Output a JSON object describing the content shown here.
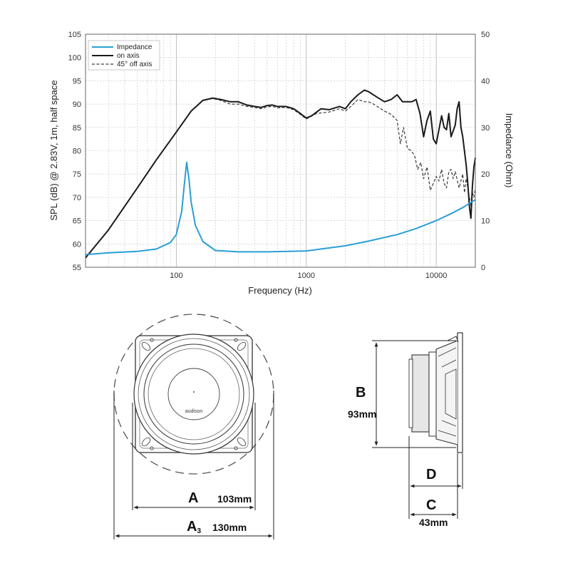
{
  "chart_data": {
    "type": "line",
    "xlabel": "Frequency (Hz)",
    "ylabel": "SPL (dB) @ 2.83V, 1m, half space",
    "y2label": "Impedance (Ohm)",
    "x_scale": "log",
    "xlim": [
      20,
      20000
    ],
    "ylim": [
      55,
      105
    ],
    "y2lim": [
      0,
      50
    ],
    "xticks": [
      {
        "v": 100,
        "label": "100"
      },
      {
        "v": 1000,
        "label": "1000"
      },
      {
        "v": 10000,
        "label": "10000"
      }
    ],
    "yticks": [
      55,
      60,
      65,
      70,
      75,
      80,
      85,
      90,
      95,
      100,
      105
    ],
    "y2ticks": [
      0,
      10,
      20,
      30,
      40,
      50
    ],
    "grid": true,
    "legend_position": "top-left",
    "series": [
      {
        "name": "Impedance",
        "axis": "right",
        "color": "#2a9fd6",
        "style": "solid",
        "x": [
          20,
          30,
          50,
          70,
          90,
          100,
          110,
          115,
          120,
          125,
          130,
          140,
          160,
          200,
          300,
          500,
          1000,
          2000,
          3000,
          5000,
          7000,
          10000,
          13000,
          16000,
          20000
        ],
        "y": [
          2.7,
          3.1,
          3.4,
          3.9,
          5.3,
          7.0,
          12.0,
          17.5,
          22.5,
          19.0,
          14.0,
          9.0,
          5.5,
          3.6,
          3.3,
          3.3,
          3.5,
          4.6,
          5.6,
          7.0,
          8.3,
          10.0,
          11.5,
          12.8,
          14.5
        ]
      },
      {
        "name": "on axis",
        "axis": "left",
        "color": "#1a1a1a",
        "style": "solid",
        "x": [
          20,
          30,
          50,
          70,
          100,
          130,
          160,
          190,
          220,
          260,
          300,
          350,
          400,
          450,
          500,
          550,
          600,
          700,
          800,
          900,
          1000,
          1100,
          1300,
          1500,
          1800,
          2000,
          2200,
          2500,
          2800,
          3000,
          3500,
          4000,
          4500,
          5000,
          5500,
          6000,
          6500,
          7000,
          7500,
          8000,
          8500,
          9000,
          9500,
          10000,
          11000,
          11500,
          12000,
          12500,
          13000,
          14000,
          14500,
          15000,
          15500,
          16000,
          17000,
          17500,
          18000,
          18500,
          19000,
          19500,
          20000
        ],
        "y": [
          57,
          63,
          72,
          78,
          84,
          88.5,
          90.8,
          91.3,
          91.0,
          90.5,
          90.5,
          89.8,
          89.5,
          89.3,
          89.7,
          89.8,
          89.5,
          89.5,
          89.0,
          88.0,
          87.0,
          87.5,
          89.0,
          88.8,
          89.5,
          89.0,
          90.5,
          92.0,
          93.0,
          92.7,
          91.5,
          90.5,
          91.0,
          92.0,
          90.5,
          90.5,
          90.5,
          91.0,
          88.0,
          83.0,
          86.5,
          88.5,
          82.5,
          81.5,
          87.5,
          85.0,
          84.5,
          88.0,
          83.0,
          85.5,
          89.0,
          90.5,
          85.0,
          83.0,
          77.0,
          73.0,
          68.0,
          65.5,
          72.5,
          76.5,
          78.5
        ]
      },
      {
        "name": "45° off axis",
        "axis": "left",
        "color": "#3a3a3a",
        "style": "dashed",
        "x": [
          20,
          30,
          50,
          70,
          100,
          130,
          160,
          190,
          220,
          260,
          300,
          350,
          400,
          450,
          500,
          550,
          600,
          700,
          800,
          900,
          1000,
          1200,
          1500,
          1800,
          2000,
          2200,
          2500,
          2800,
          3000,
          3300,
          3600,
          4000,
          4500,
          5000,
          5300,
          5600,
          6000,
          6400,
          6800,
          7200,
          7600,
          8000,
          8500,
          9000,
          9500,
          10000,
          10500,
          11000,
          11500,
          12000,
          12500,
          13000,
          13500,
          14000,
          15000,
          16000,
          16500,
          17000,
          17500,
          18000,
          18500,
          19000,
          19500,
          20000
        ],
        "y": [
          57,
          63,
          72,
          78,
          84,
          88.5,
          90.8,
          91.2,
          90.8,
          90.0,
          90.0,
          89.5,
          89.3,
          89.0,
          89.4,
          89.5,
          89.2,
          89.3,
          88.8,
          87.8,
          86.8,
          88.0,
          88.3,
          89.0,
          88.5,
          89.5,
          91.0,
          90.5,
          90.5,
          90.0,
          89.3,
          88.5,
          87.8,
          86.5,
          81.5,
          85.0,
          80.5,
          80.0,
          79.0,
          76.0,
          77.5,
          74.0,
          76.5,
          71.5,
          73.0,
          74.5,
          73.5,
          76.0,
          73.0,
          72.0,
          75.5,
          76.0,
          74.0,
          75.5,
          72.0,
          75.0,
          71.0,
          74.0,
          72.0,
          70.0,
          68.0,
          71.0,
          70.0,
          72.0
        ]
      }
    ]
  },
  "drawing": {
    "brand_logo": "audison",
    "dimension_a": {
      "letter": "A",
      "value": "103mm"
    },
    "dimension_a3": {
      "letter": "A",
      "subscript": "3",
      "value": "130mm"
    },
    "dimension_b": {
      "letter": "B",
      "value": "93mm"
    },
    "dimension_c": {
      "letter": "C",
      "value": "43mm"
    },
    "dimension_d": {
      "letter": "D"
    }
  }
}
